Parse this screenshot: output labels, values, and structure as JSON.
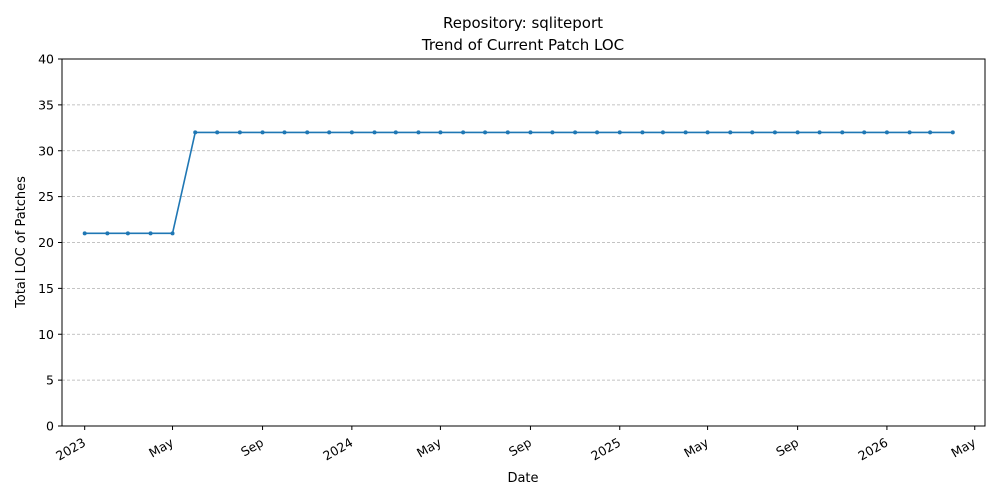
{
  "chart_data": {
    "type": "line",
    "title": "Repository: sqliteport",
    "subtitle": "Trend of Current Patch LOC",
    "xlabel": "Date",
    "ylabel": "Total LOC of Patches",
    "xlim": [
      "2022-12-01",
      "2026-05-15"
    ],
    "ylim": [
      0,
      40
    ],
    "y_ticks": [
      0,
      5,
      10,
      15,
      20,
      25,
      30,
      35,
      40
    ],
    "x_ticks": [
      {
        "date": "2023-01-01",
        "label": "2023"
      },
      {
        "date": "2023-05-01",
        "label": "May"
      },
      {
        "date": "2023-09-01",
        "label": "Sep"
      },
      {
        "date": "2024-01-01",
        "label": "2024"
      },
      {
        "date": "2024-05-01",
        "label": "May"
      },
      {
        "date": "2024-09-01",
        "label": "Sep"
      },
      {
        "date": "2025-01-01",
        "label": "2025"
      },
      {
        "date": "2025-05-01",
        "label": "May"
      },
      {
        "date": "2025-09-01",
        "label": "Sep"
      },
      {
        "date": "2026-01-01",
        "label": "2026"
      },
      {
        "date": "2026-05-01",
        "label": "May"
      }
    ],
    "grid": "horizontal-dashed",
    "line_color": "#1f77b4",
    "series": [
      {
        "x": [
          "2023-01-01",
          "2023-02-01",
          "2023-03-01",
          "2023-04-01",
          "2023-05-01",
          "2023-06-01",
          "2023-07-01",
          "2023-08-01",
          "2023-09-01",
          "2023-10-01",
          "2023-11-01",
          "2023-12-01",
          "2024-01-01",
          "2024-02-01",
          "2024-03-01",
          "2024-04-01",
          "2024-05-01",
          "2024-06-01",
          "2024-07-01",
          "2024-08-01",
          "2024-09-01",
          "2024-10-01",
          "2024-11-01",
          "2024-12-01",
          "2025-01-01",
          "2025-02-01",
          "2025-03-01",
          "2025-04-01",
          "2025-05-01",
          "2025-06-01",
          "2025-07-01",
          "2025-08-01",
          "2025-09-01",
          "2025-10-01",
          "2025-11-01",
          "2025-12-01",
          "2026-01-01",
          "2026-02-01",
          "2026-03-01",
          "2026-04-01"
        ],
        "values": [
          21,
          21,
          21,
          21,
          21,
          32,
          32,
          32,
          32,
          32,
          32,
          32,
          32,
          32,
          32,
          32,
          32,
          32,
          32,
          32,
          32,
          32,
          32,
          32,
          32,
          32,
          32,
          32,
          32,
          32,
          32,
          32,
          32,
          32,
          32,
          32,
          32,
          32,
          32,
          32
        ]
      }
    ]
  }
}
